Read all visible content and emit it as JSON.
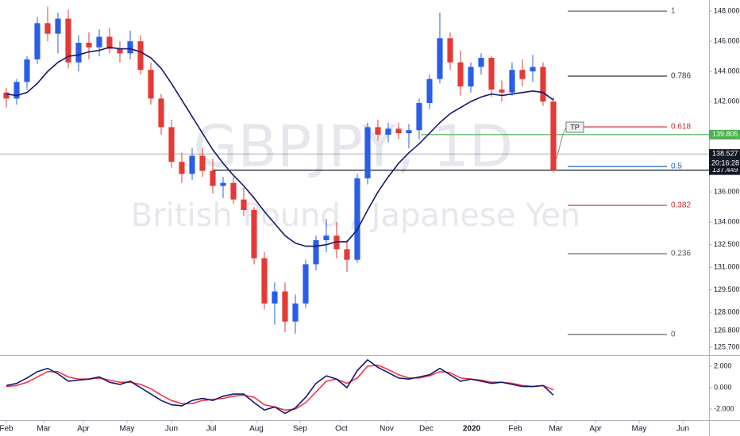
{
  "chart_data": {
    "type": "candlestick",
    "title": "GBPJPY, 1D",
    "subtitle": "British Pound / Japanese Yen",
    "up_color": "#2a5de8",
    "down_color": "#e53935",
    "xlim": [
      -0.615,
      68.08
    ],
    "xticks": [
      {
        "value": 0,
        "label": "Feb"
      },
      {
        "value": 3.62,
        "label": "Mar"
      },
      {
        "value": 7.46,
        "label": "Apr"
      },
      {
        "value": 11.69,
        "label": "May"
      },
      {
        "value": 16.0,
        "label": "Jun"
      },
      {
        "value": 19.85,
        "label": "Jul"
      },
      {
        "value": 24.23,
        "label": "Aug"
      },
      {
        "value": 28.46,
        "label": "Sep"
      },
      {
        "value": 32.46,
        "label": "Oct"
      },
      {
        "value": 36.85,
        "label": "Nov"
      },
      {
        "value": 40.69,
        "label": "Dec"
      },
      {
        "value": 45.08,
        "label": "2020"
      },
      {
        "value": 49.31,
        "label": "Feb"
      },
      {
        "value": 53.23,
        "label": "Mar"
      },
      {
        "value": 57.08,
        "label": "Apr"
      },
      {
        "value": 61.31,
        "label": "May"
      },
      {
        "value": 65.54,
        "label": "Jun"
      }
    ],
    "ylim": [
      125.17,
      148.74
    ],
    "yticks": [
      {
        "value": 148,
        "label": "148.000"
      },
      {
        "value": 146,
        "label": "146.000"
      },
      {
        "value": 144,
        "label": "144.000"
      },
      {
        "value": 142,
        "label": "142.000"
      },
      {
        "value": 136,
        "label": "136.000"
      },
      {
        "value": 134,
        "label": "134.000"
      },
      {
        "value": 132.5,
        "label": "132.500"
      },
      {
        "value": 131,
        "label": "131.000"
      },
      {
        "value": 129.5,
        "label": "129.500"
      },
      {
        "value": 128,
        "label": "128.000"
      },
      {
        "value": 126.8,
        "label": "126.800"
      },
      {
        "value": 125.7,
        "label": "125.700"
      }
    ],
    "x": [
      0,
      1,
      2,
      3,
      4,
      5,
      6,
      7,
      8,
      9,
      10,
      11,
      12,
      13,
      14,
      15,
      16,
      17,
      18,
      19,
      20,
      21,
      22,
      23,
      24,
      25,
      26,
      27,
      28,
      29,
      30,
      31,
      32,
      33,
      34,
      35,
      36,
      37,
      38,
      39,
      40,
      41,
      42,
      43,
      44,
      45,
      46,
      47,
      48,
      49,
      50,
      51,
      52,
      53
    ],
    "open": [
      142.6,
      142.2,
      143.3,
      144.8,
      147.2,
      146.5,
      147.5,
      144.6,
      145.9,
      145.6,
      146.3,
      145.5,
      145.2,
      146.0,
      144.1,
      142.2,
      140.3,
      138.0,
      137.2,
      138.4,
      137.4,
      136.4,
      136.6,
      135.5,
      134.8,
      131.6,
      128.6,
      129.4,
      127.4,
      128.6,
      131.2,
      132.8,
      133.1,
      132.2,
      131.5,
      136.9,
      140.3,
      139.8,
      140.2,
      139.9,
      140.1,
      141.9,
      143.5,
      146.2,
      144.6,
      143.0,
      144.3,
      144.9,
      142.8,
      142.6,
      144.1,
      144.0,
      144.3,
      142.0
    ],
    "high": [
      142.9,
      143.5,
      145.0,
      147.6,
      148.3,
      147.9,
      148.1,
      146.4,
      146.6,
      146.8,
      146.9,
      146.0,
      146.7,
      146.4,
      144.6,
      142.5,
      140.8,
      138.6,
      138.9,
      138.9,
      138.2,
      137.0,
      137.0,
      136.3,
      135.0,
      132.0,
      130.0,
      130.0,
      129.2,
      131.5,
      133.1,
      134.2,
      134.0,
      132.8,
      137.2,
      140.6,
      140.8,
      140.6,
      140.6,
      140.5,
      142.2,
      143.8,
      147.9,
      146.6,
      145.4,
      144.6,
      145.2,
      145.0,
      143.4,
      144.6,
      144.8,
      145.1,
      144.6,
      142.3
    ],
    "low": [
      141.6,
      141.8,
      142.8,
      144.5,
      146.0,
      145.2,
      144.2,
      144.0,
      144.8,
      145.0,
      145.2,
      144.6,
      144.8,
      143.8,
      141.8,
      139.8,
      137.6,
      136.6,
      136.8,
      137.0,
      135.9,
      135.6,
      135.2,
      134.4,
      131.2,
      128.2,
      127.2,
      126.7,
      126.6,
      128.3,
      130.8,
      132.0,
      131.6,
      130.7,
      131.3,
      136.5,
      139.4,
      139.3,
      139.5,
      138.9,
      139.5,
      141.5,
      143.2,
      144.1,
      142.4,
      142.6,
      143.8,
      142.3,
      142.0,
      142.4,
      143.0,
      143.3,
      141.7,
      137.3
    ],
    "close": [
      142.2,
      143.3,
      144.8,
      147.2,
      146.5,
      147.5,
      144.6,
      145.9,
      145.6,
      146.3,
      145.5,
      145.2,
      146.0,
      144.1,
      142.2,
      140.3,
      138.0,
      137.2,
      138.4,
      137.4,
      136.4,
      136.6,
      135.5,
      134.8,
      131.6,
      128.6,
      129.4,
      127.4,
      128.6,
      131.2,
      132.8,
      133.1,
      132.2,
      131.5,
      136.9,
      140.3,
      139.8,
      140.2,
      139.9,
      140.1,
      141.9,
      143.5,
      146.2,
      144.6,
      143.0,
      144.3,
      144.9,
      142.8,
      142.6,
      144.1,
      143.5,
      144.3,
      142.0,
      137.45
    ],
    "moving_average": {
      "color": "#131870",
      "values": [
        142.5,
        142.4,
        142.6,
        143.2,
        144.0,
        144.6,
        145.0,
        145.1,
        145.3,
        145.4,
        145.6,
        145.5,
        145.5,
        145.3,
        144.9,
        144.2,
        143.2,
        142.1,
        141.0,
        139.9,
        138.8,
        137.9,
        137.1,
        136.4,
        135.6,
        134.7,
        133.9,
        133.1,
        132.6,
        132.4,
        132.4,
        132.5,
        132.7,
        132.7,
        133.5,
        134.8,
        136.0,
        137.0,
        137.9,
        138.6,
        139.2,
        139.9,
        140.6,
        141.2,
        141.6,
        142.0,
        142.3,
        142.5,
        142.4,
        142.5,
        142.6,
        142.7,
        142.6,
        142.1
      ]
    },
    "price_lines": [
      {
        "value": 139.805,
        "label": "139.805",
        "color": "#4caf50"
      },
      {
        "value": 138.527,
        "label": "138.527",
        "color": "#131722"
      },
      {
        "value": 137.449,
        "label": "137.449",
        "color": "#131722"
      }
    ],
    "countdown": "20:16:28",
    "annotation": "TP",
    "fib_levels": [
      {
        "label": "1",
        "value": 148.0,
        "color": "#555555"
      },
      {
        "label": "0.786",
        "value": 143.69,
        "color": "#333333"
      },
      {
        "label": "0.618",
        "value": 140.32,
        "color": "#c62828"
      },
      {
        "label": "0.5",
        "value": 137.69,
        "color": "#1565c0"
      },
      {
        "label": "0.382",
        "value": 135.11,
        "color": "#c62828"
      },
      {
        "label": "0.236",
        "value": 131.9,
        "color": "#555555"
      },
      {
        "label": "0",
        "value": 126.54,
        "color": "#555555"
      }
    ],
    "oscillator": {
      "ylim": [
        -3.04,
        2.89
      ],
      "yticks": [
        {
          "value": 2,
          "label": "2.000"
        },
        {
          "value": 0,
          "label": "0.000"
        },
        {
          "value": -2,
          "label": "-2.000"
        }
      ],
      "series": [
        {
          "color": "#131870",
          "values": [
            0.2,
            0.4,
            0.9,
            1.5,
            1.8,
            1.3,
            0.6,
            0.7,
            0.8,
            1.0,
            0.5,
            0.3,
            0.6,
            0.0,
            -0.6,
            -1.2,
            -1.6,
            -1.7,
            -1.2,
            -1.0,
            -1.2,
            -0.8,
            -0.6,
            -0.6,
            -1.4,
            -2.1,
            -1.8,
            -2.4,
            -1.9,
            -0.9,
            0.4,
            1.1,
            0.8,
            0.0,
            1.6,
            2.6,
            1.9,
            1.4,
            0.9,
            0.8,
            1.0,
            1.2,
            1.8,
            1.2,
            0.6,
            0.8,
            0.6,
            0.4,
            0.5,
            0.3,
            0.1,
            0.1,
            0.2,
            -0.7
          ]
        },
        {
          "color": "#f23645",
          "values": [
            0.1,
            0.2,
            0.5,
            1.0,
            1.5,
            1.5,
            1.0,
            0.8,
            0.8,
            0.9,
            0.7,
            0.5,
            0.5,
            0.3,
            -0.1,
            -0.7,
            -1.2,
            -1.5,
            -1.5,
            -1.2,
            -1.1,
            -1.0,
            -0.8,
            -0.7,
            -0.9,
            -1.6,
            -1.8,
            -2.1,
            -2.0,
            -1.4,
            -0.4,
            0.6,
            0.8,
            0.4,
            0.9,
            2.0,
            2.1,
            1.7,
            1.2,
            0.9,
            0.9,
            1.1,
            1.5,
            1.4,
            0.9,
            0.8,
            0.7,
            0.5,
            0.5,
            0.4,
            0.2,
            0.1,
            0.2,
            -0.2
          ]
        }
      ]
    }
  }
}
